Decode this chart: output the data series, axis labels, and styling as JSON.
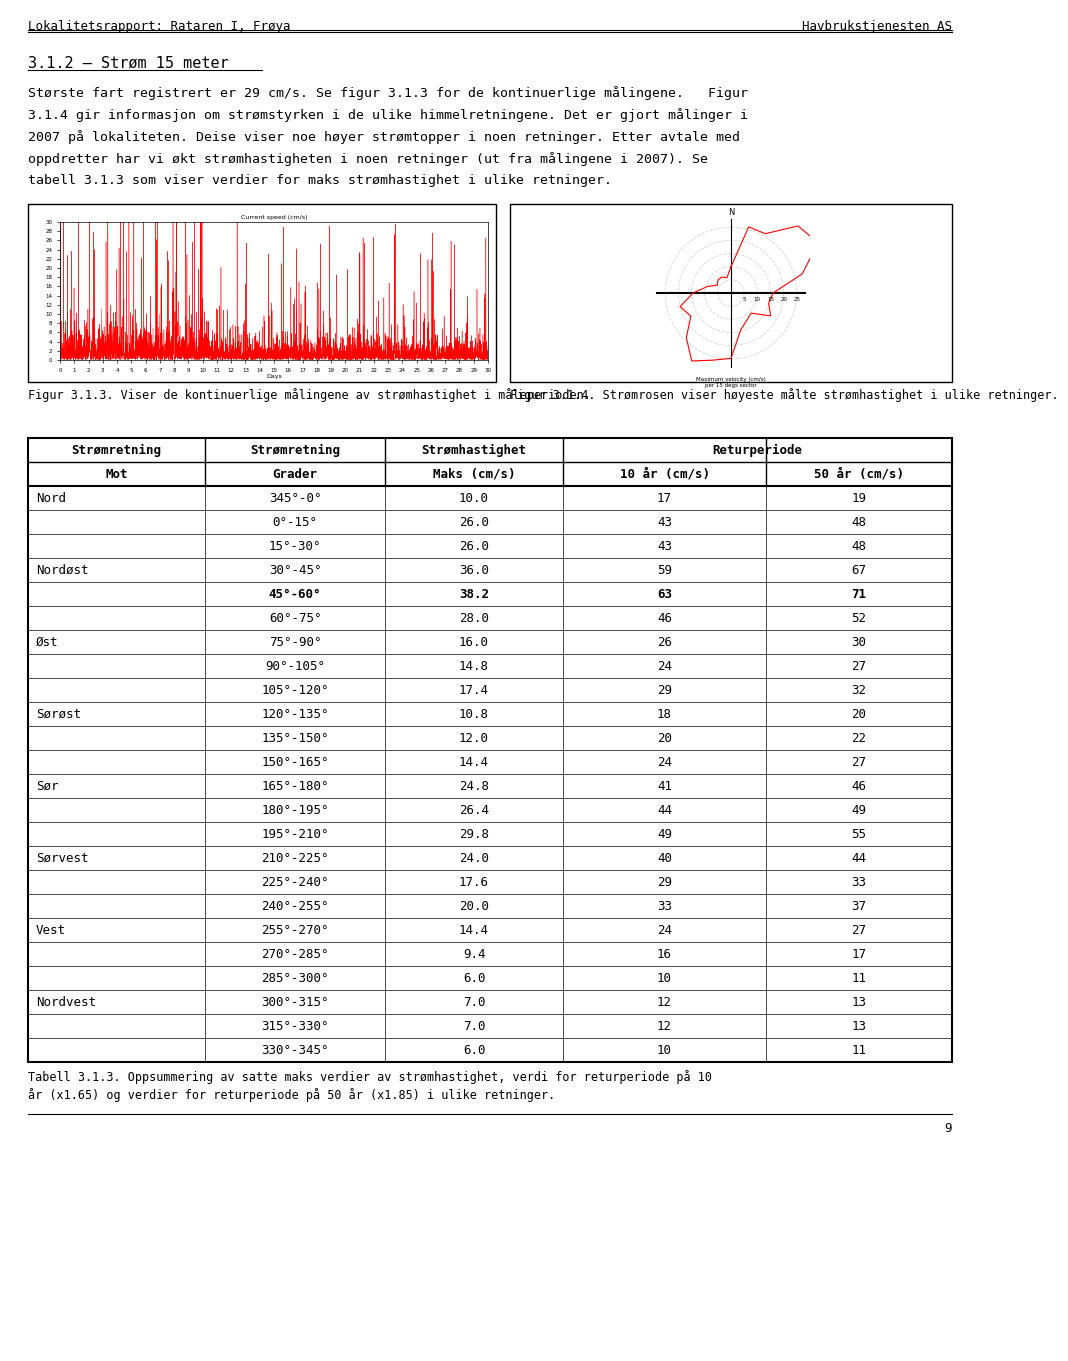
{
  "header_left": "Lokalitetsrapport: Rataren I, Frøya",
  "header_right": "Havbrukstjenesten AS",
  "section_title": "3.1.2 – Strøm 15 meter",
  "fig_caption_left": "Figur 3.1.3. Viser de kontinuerlige målingene av strømhastighet i måleperioden.",
  "fig_caption_right": "Figur 3.1.4. Strømrosen viser høyeste målte strømhastighet i ulike retninger.",
  "table_caption_lines": [
    "Tabell 3.1.3. Oppsummering av satte maks verdier av strømhastighet, verdi for returperiode på 10",
    "år (x1.65) og verdier for returperiode på 50 år (x1.85) i ulike retninger."
  ],
  "page_number": "9",
  "body_lines": [
    "Største fart registrert er 29 cm/s. Se figur 3.1.3 for de kontinuerlige målingene.   Figur",
    "3.1.4 gir informasjon om strømstyrken i de ulike himmelretningene. Det er gjort målinger i",
    "2007 på lokaliteten. Deise viser noe høyer strømtopper i noen retninger. Etter avtale med",
    "oppdretter har vi økt strømhastigheten i noen retninger (ut fra målingene i 2007). Se",
    "tabell 3.1.3 som viser verdier for maks strømhastighet i ulike retninger."
  ],
  "col_headers_row1": [
    "Strømretning",
    "Strømretning",
    "Strømhastighet",
    "Returperiode"
  ],
  "col_headers_row2": [
    "Mot",
    "Grader",
    "Maks (cm/s)",
    "10 år (cm/s)",
    "50 år (cm/s)"
  ],
  "table_data": [
    [
      "Nord",
      "345°-0°",
      "10.0",
      "17",
      "19"
    ],
    [
      "",
      "0°-15°",
      "26.0",
      "43",
      "48"
    ],
    [
      "",
      "15°-30°",
      "26.0",
      "43",
      "48"
    ],
    [
      "Nordøst",
      "30°-45°",
      "36.0",
      "59",
      "67"
    ],
    [
      "",
      "45°-60°",
      "38.2",
      "63",
      "71"
    ],
    [
      "",
      "60°-75°",
      "28.0",
      "46",
      "52"
    ],
    [
      "Øst",
      "75°-90°",
      "16.0",
      "26",
      "30"
    ],
    [
      "",
      "90°-105°",
      "14.8",
      "24",
      "27"
    ],
    [
      "",
      "105°-120°",
      "17.4",
      "29",
      "32"
    ],
    [
      "Sørøst",
      "120°-135°",
      "10.8",
      "18",
      "20"
    ],
    [
      "",
      "135°-150°",
      "12.0",
      "20",
      "22"
    ],
    [
      "",
      "150°-165°",
      "14.4",
      "24",
      "27"
    ],
    [
      "Sør",
      "165°-180°",
      "24.8",
      "41",
      "46"
    ],
    [
      "",
      "180°-195°",
      "26.4",
      "44",
      "49"
    ],
    [
      "",
      "195°-210°",
      "29.8",
      "49",
      "55"
    ],
    [
      "Sørvest",
      "210°-225°",
      "24.0",
      "40",
      "44"
    ],
    [
      "",
      "225°-240°",
      "17.6",
      "29",
      "33"
    ],
    [
      "",
      "240°-255°",
      "20.0",
      "33",
      "37"
    ],
    [
      "Vest",
      "255°-270°",
      "14.4",
      "24",
      "27"
    ],
    [
      "",
      "270°-285°",
      "9.4",
      "16",
      "17"
    ],
    [
      "",
      "285°-300°",
      "6.0",
      "10",
      "11"
    ],
    [
      "Nordvest",
      "300°-315°",
      "7.0",
      "12",
      "13"
    ],
    [
      "",
      "315°-330°",
      "7.0",
      "12",
      "13"
    ],
    [
      "",
      "330°-345°",
      "6.0",
      "10",
      "11"
    ]
  ],
  "bold_row_index": 4,
  "background_color": "#ffffff",
  "text_color": "#000000"
}
